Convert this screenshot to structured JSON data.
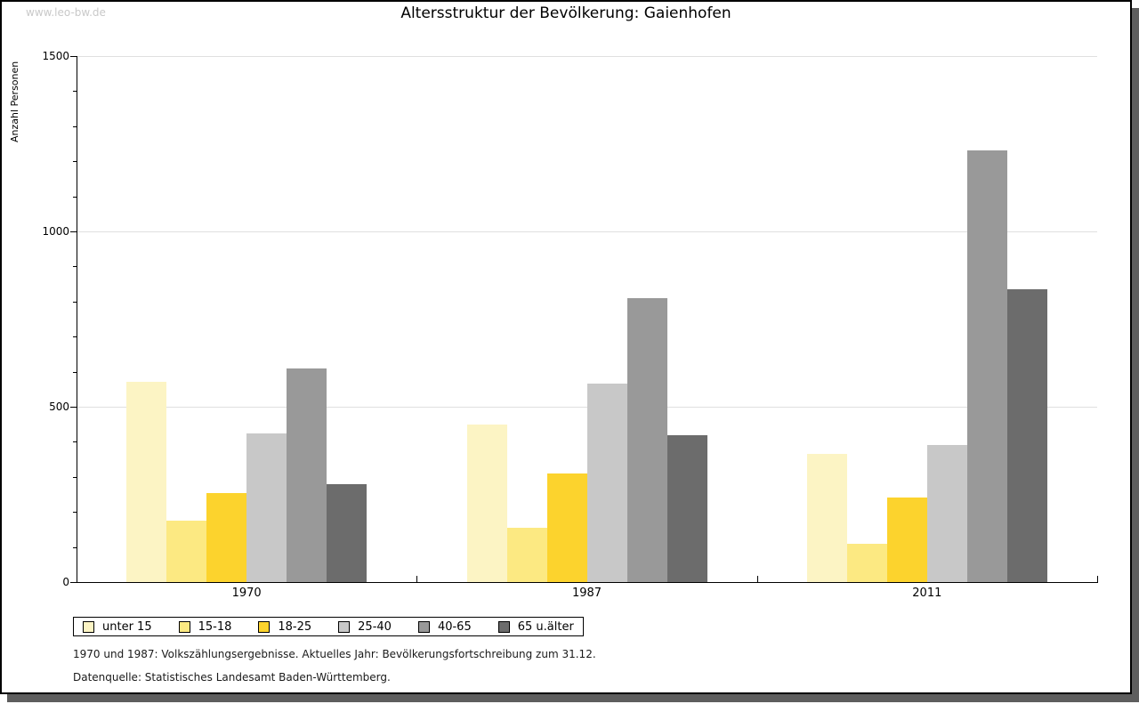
{
  "watermark": "www.leo-bw.de",
  "chart_data": {
    "type": "bar",
    "title": "Altersstruktur der Bevölkerung: Gaienhofen",
    "xlabel": "",
    "ylabel": "Anzahl Personen",
    "ylim": [
      0,
      1500
    ],
    "yticks_major": [
      0,
      500,
      1000,
      1500
    ],
    "ytick_minor_step": 100,
    "grid": "horizontal-light-gray",
    "legend_position": "bottom-left",
    "categories": [
      "1970",
      "1987",
      "2011"
    ],
    "series": [
      {
        "name": "unter 15",
        "color": "#fcf4c4",
        "values": [
          570,
          450,
          365
        ]
      },
      {
        "name": "15-18",
        "color": "#fce982",
        "values": [
          175,
          155,
          110
        ]
      },
      {
        "name": "18-25",
        "color": "#fcd32d",
        "values": [
          255,
          310,
          240
        ]
      },
      {
        "name": "25-40",
        "color": "#c8c8c8",
        "values": [
          425,
          565,
          390
        ]
      },
      {
        "name": "40-65",
        "color": "#999999",
        "values": [
          610,
          810,
          1230
        ]
      },
      {
        "name": "65 u.älter",
        "color": "#6c6c6c",
        "values": [
          280,
          420,
          835
        ]
      }
    ]
  },
  "footnotes": {
    "line1": "1970 und 1987: Volkszählungsergebnisse. Aktuelles Jahr: Bevölkerungsfortschreibung zum 31.12.",
    "line2": "Datenquelle: Statistisches Landesamt Baden-Württemberg."
  },
  "colors": {
    "axis": "#000000",
    "grid": "#e0e0e0",
    "watermark": "#c9c9c9",
    "frame_shadow": "#5e5e5e"
  }
}
